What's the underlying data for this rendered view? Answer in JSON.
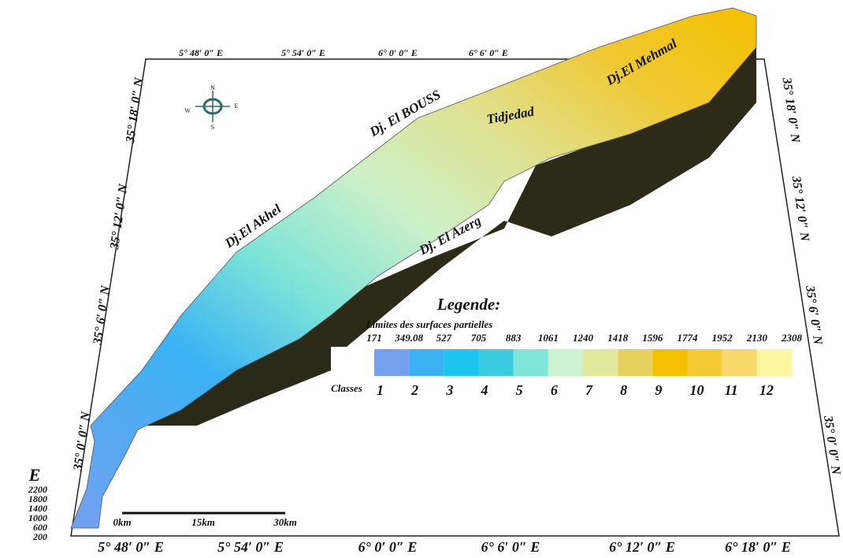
{
  "map": {
    "top_axis_labels": [
      "5° 48′ 0″ E",
      "5° 54′ 0″ E",
      "6° 0′ 0″ E",
      "6° 6′ 0″ E"
    ],
    "bottom_axis_labels": [
      "5° 48′ 0″ E",
      "5° 54′ 0″ E",
      "6° 0′ 0″ E",
      "6° 6′ 0″ E",
      "6° 12′ 0″ E",
      "6° 18′ 0″ E"
    ],
    "left_axis_labels": [
      "35° 18′ 0″ N",
      "35° 12′ 0″ N",
      "35° 6′ 0″ N",
      "35° 0′ 0″ N"
    ],
    "right_axis_labels": [
      "35° 18′ 0″ N",
      "35° 12′ 0″ N",
      "35° 6′ 0″ N",
      "35° 0′ 0″ N"
    ],
    "places": [
      "Dj.El Akhel",
      "Dj. El BOUSS",
      "Tidjedad",
      "Dj.El Mehmal",
      "Dj. El Azerg"
    ],
    "compass": [
      "N",
      "E",
      "S",
      "W"
    ],
    "legend": {
      "title": "Legende:",
      "subtitle": "Limites des surfaces partielles",
      "limits": [
        171,
        349.08,
        527,
        705,
        883,
        1061,
        1240,
        1418,
        1596,
        1774,
        1952,
        2130,
        2308
      ],
      "classes_label": "Classes",
      "classes": [
        1,
        2,
        3,
        4,
        5,
        6,
        7,
        8,
        9,
        10,
        11,
        12
      ],
      "colors": [
        "#74a0ee",
        "#3ab2f4",
        "#1cc6f0",
        "#3ccbe0",
        "#80e6da",
        "#cdf2d2",
        "#e0e89c",
        "#e6d05e",
        "#f5c000",
        "#f5ca34",
        "#f8da6c",
        "#fcf6a2"
      ]
    },
    "elevation_axis": {
      "label": "E",
      "ticks": [
        2200,
        1800,
        1400,
        1000,
        600,
        200
      ]
    },
    "scale_bar": [
      "0km",
      "15km",
      "30km"
    ]
  }
}
